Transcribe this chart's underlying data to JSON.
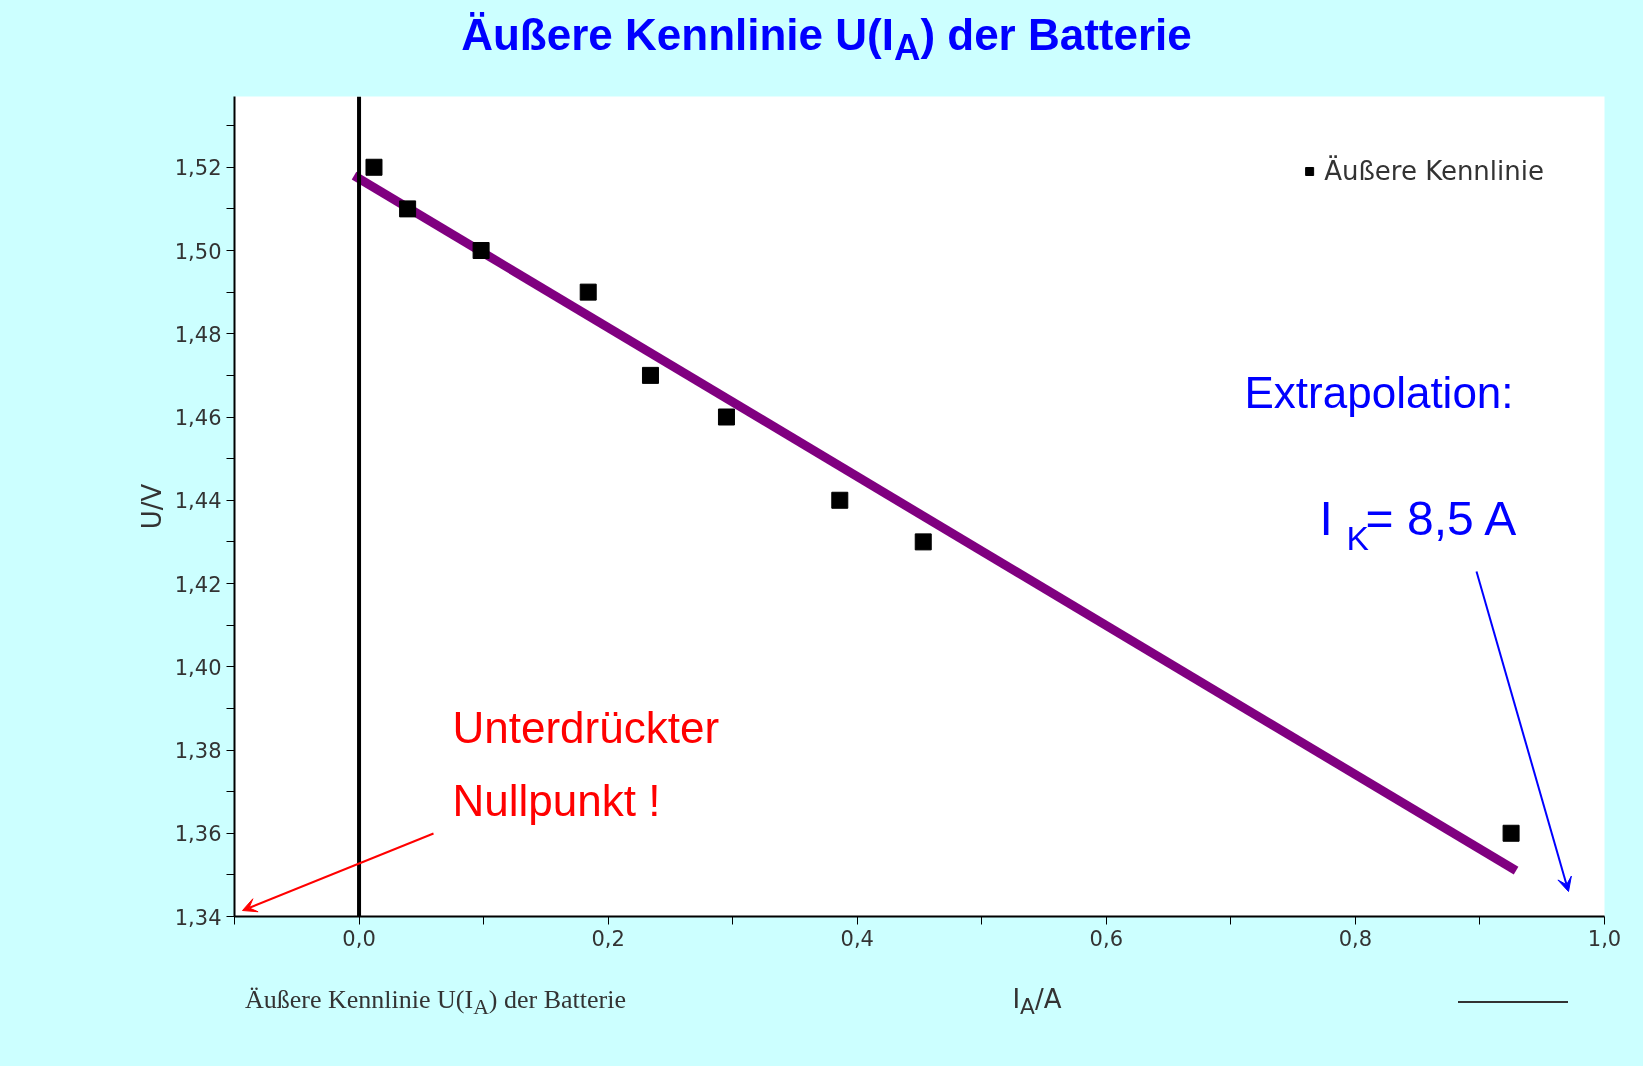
{
  "chart_data": {
    "type": "scatter",
    "title": "Äußere Kennlinie U(I$_{A}$) der Batterie",
    "xlabel": "I$_{A}$/A",
    "ylabel": "U/V",
    "series": [
      {
        "name": "Äußere Kennlinie",
        "marker": "square",
        "color": "#000000",
        "x": [
          0.012,
          0.039,
          0.098,
          0.184,
          0.234,
          0.295,
          0.386,
          0.453,
          0.925
        ],
        "values": [
          1.52,
          1.51,
          1.5,
          1.49,
          1.47,
          1.46,
          1.44,
          1.43,
          1.36
        ]
      },
      {
        "type": "line",
        "color": "#800080",
        "x": [
          -0.004,
          0.929
        ],
        "values": [
          1.518,
          1.351
        ]
      }
    ],
    "legend": "top right",
    "grid": false,
    "xlim": [
      -0.1,
      1.0
    ],
    "ylim": [
      1.34,
      1.537
    ],
    "xticks": [
      {
        "value": -0.1,
        "label": null
      },
      {
        "value": 0,
        "label": "0,0"
      },
      {
        "value": 0.1,
        "label": null
      },
      {
        "value": 0.2,
        "label": "0,2"
      },
      {
        "value": 0.3,
        "label": null
      },
      {
        "value": 0.4,
        "label": "0,4"
      },
      {
        "value": 0.5,
        "label": null
      },
      {
        "value": 0.6,
        "label": "0,6"
      },
      {
        "value": 0.7,
        "label": null
      },
      {
        "value": 0.8,
        "label": "0,8"
      },
      {
        "value": 0.9,
        "label": null
      },
      {
        "value": 1.0,
        "label": "1,0"
      }
    ],
    "yticks": [
      {
        "value": 1.34,
        "label": "1,34"
      },
      {
        "value": 1.35,
        "label": null
      },
      {
        "value": 1.36,
        "label": "1,36"
      },
      {
        "value": 1.37,
        "label": null
      },
      {
        "value": 1.38,
        "label": "1,38"
      },
      {
        "value": 1.39,
        "label": null
      },
      {
        "value": 1.4,
        "label": "1,40"
      },
      {
        "value": 1.41,
        "label": null
      },
      {
        "value": 1.42,
        "label": "1,42"
      },
      {
        "value": 1.43,
        "label": null
      },
      {
        "value": 1.44,
        "label": "1,44"
      },
      {
        "value": 1.45,
        "label": null
      },
      {
        "value": 1.46,
        "label": "1,46"
      },
      {
        "value": 1.47,
        "label": null
      },
      {
        "value": 1.48,
        "label": "1,48"
      },
      {
        "value": 1.49,
        "label": null
      },
      {
        "value": 1.5,
        "label": "1,50"
      },
      {
        "value": 1.51,
        "label": null
      },
      {
        "value": 1.52,
        "label": "1,52"
      },
      {
        "value": 1.53,
        "label": null
      }
    ],
    "ref_lines": [
      {
        "axis": "x",
        "value": 0,
        "color": "#000000"
      }
    ],
    "annotations": [
      "Unterdrückter\nNullpunkt !",
      "Extrapolation:",
      "I$_{K}$= 8,5 A",
      "Äußere Kennlinie U(I$_{A}$) der Batterie"
    ]
  }
}
